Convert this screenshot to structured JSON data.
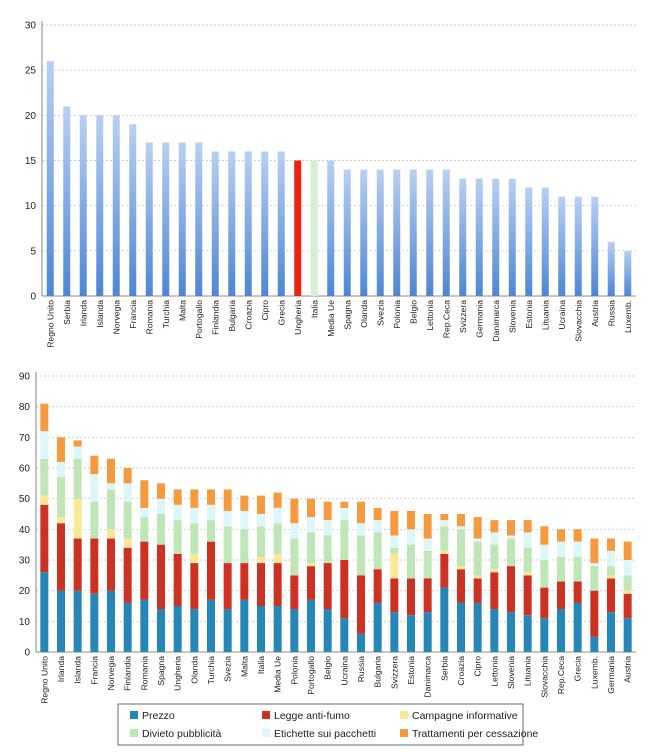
{
  "colors": {
    "bar_top": "#b9d0f2",
    "bar_bottom": "#4e86d4",
    "highlight": "#ee2211",
    "average": "#d5f2d0",
    "grid": "#bdbdbd",
    "series": [
      "#2686b6",
      "#cc3224",
      "#fae896",
      "#bfe6b6",
      "#dcf6fa",
      "#f59a3e"
    ]
  },
  "chart_data": [
    {
      "type": "bar",
      "ylim": [
        0,
        30
      ],
      "yticks": [
        0,
        5,
        10,
        15,
        20,
        25,
        30
      ],
      "grid": true,
      "categories": [
        "Regno Unito",
        "Serbia",
        "Irlanda",
        "Islanda",
        "Norvegia",
        "Francia",
        "Romania",
        "Turchia",
        "Malta",
        "Portogallo",
        "Finlandia",
        "Bulgaria",
        "Croazia",
        "Cipro",
        "Grecia",
        "Ungheria",
        "Italia",
        "Media Ue",
        "Spagna",
        "Olanda",
        "Svezia",
        "Polonia",
        "Belgio",
        "Lettonia",
        "Rep.Ceca",
        "Svizzera",
        "Germania",
        "Danimarca",
        "Slovenia",
        "Estonia",
        "Lituania",
        "Ucraina",
        "Slovacchia",
        "Austria",
        "Russia",
        "Luxemb."
      ],
      "values": [
        26,
        21,
        20,
        20,
        20,
        19,
        17,
        17,
        17,
        17,
        16,
        16,
        16,
        16,
        16,
        15,
        15,
        15,
        14,
        14,
        14,
        14,
        14,
        14,
        14,
        13,
        13,
        13,
        13,
        12,
        12,
        11,
        11,
        11,
        6,
        5
      ],
      "highlight_index": 15,
      "average_index": 16
    },
    {
      "type": "bar",
      "stacked": true,
      "ylim": [
        0,
        90
      ],
      "yticks": [
        0,
        10,
        20,
        30,
        40,
        50,
        60,
        70,
        80,
        90
      ],
      "grid": true,
      "legend_position": "bottom",
      "categories": [
        "Regno Unito",
        "Irlanda",
        "Islanda",
        "Francia",
        "Norvegia",
        "Finlandia",
        "Romania",
        "Spagna",
        "Ungheria",
        "Olanda",
        "Turchia",
        "Svezia",
        "Malta",
        "Italia",
        "Media Ue",
        "Polonia",
        "Portogallo",
        "Belgio",
        "Ucraina",
        "Russia",
        "Bulgaria",
        "Svizzera",
        "Estonia",
        "Danimarca",
        "Serbia",
        "Croazia",
        "Cipro",
        "Lettonia",
        "Slovenia",
        "Lituania",
        "Slovacchia",
        "Rep.Ceca",
        "Grecia",
        "Luxemb.",
        "Germania",
        "Austria"
      ],
      "series": [
        {
          "name": "Prezzo",
          "values": [
            26,
            20,
            20,
            19,
            20,
            16,
            17,
            14,
            15,
            14,
            17,
            14,
            17,
            15,
            15,
            14,
            17,
            14,
            11,
            6,
            16,
            13,
            12,
            13,
            21,
            16,
            16,
            14,
            13,
            12,
            11,
            14,
            16,
            5,
            13,
            11
          ]
        },
        {
          "name": "Legge anti-fumo",
          "values": [
            22,
            22,
            17,
            18,
            17,
            18,
            19,
            21,
            17,
            15,
            19,
            15,
            12,
            14,
            14,
            11,
            11,
            15,
            19,
            19,
            11,
            11,
            12,
            11,
            11,
            11,
            8,
            12,
            15,
            13,
            10,
            9,
            7,
            15,
            11,
            8
          ]
        },
        {
          "name": "Campagne informative",
          "values": [
            3,
            2,
            13,
            0,
            3,
            3,
            0,
            0,
            0,
            3,
            0,
            0,
            0,
            2,
            3,
            0,
            1,
            0,
            0,
            0,
            0,
            8,
            0,
            0,
            1,
            1,
            1,
            1,
            0,
            1,
            0,
            0,
            0,
            0,
            1,
            1
          ]
        },
        {
          "name": "Divieto pubblicità",
          "values": [
            12,
            13,
            13,
            12,
            13,
            12,
            8,
            10,
            11,
            10,
            7,
            12,
            11,
            10,
            10,
            12,
            10,
            9,
            13,
            13,
            12,
            2,
            11,
            9,
            8,
            12,
            11,
            8,
            9,
            8,
            9,
            8,
            8,
            8,
            3,
            5
          ]
        },
        {
          "name": "Etichette sui pacchetti",
          "values": [
            9,
            5,
            4,
            9,
            2,
            6,
            3,
            5,
            5,
            5,
            5,
            5,
            6,
            4,
            5,
            5,
            5,
            5,
            4,
            4,
            4,
            4,
            5,
            4,
            2,
            1,
            1,
            4,
            1,
            5,
            5,
            5,
            5,
            1,
            5,
            5
          ]
        },
        {
          "name": "Trattamenti per cessazione",
          "values": [
            9,
            8,
            2,
            6,
            8,
            5,
            9,
            5,
            5,
            6,
            5,
            7,
            5,
            6,
            5,
            8,
            6,
            6,
            2,
            7,
            4,
            8,
            6,
            8,
            2,
            4,
            7,
            4,
            5,
            4,
            6,
            4,
            4,
            8,
            4,
            6
          ]
        }
      ]
    }
  ]
}
